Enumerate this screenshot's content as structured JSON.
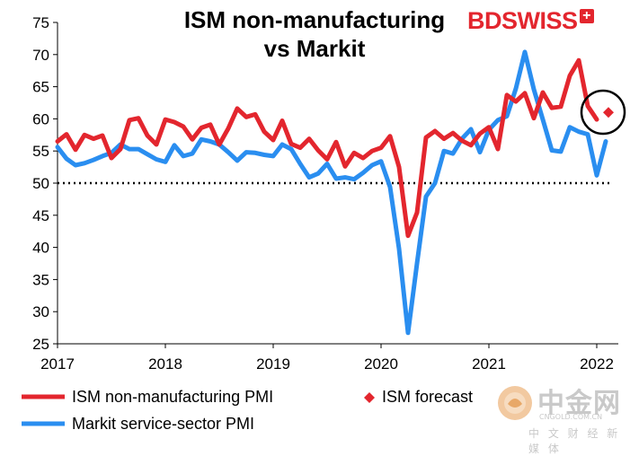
{
  "chart_data": {
    "type": "line",
    "title_line1": "ISM non-manufacturing",
    "title_line2": "vs Markit",
    "brand": {
      "bd": "BD",
      "swiss": "SWISS",
      "plus": "+"
    },
    "ylim": [
      25,
      75
    ],
    "yticks": [
      "25",
      "30",
      "35",
      "40",
      "45",
      "50",
      "55",
      "60",
      "65",
      "70",
      "75"
    ],
    "xticks": [
      "2017",
      "2018",
      "2019",
      "2020",
      "2021",
      "2022"
    ],
    "reference_line": {
      "value": 50,
      "style": "dotted",
      "color": "#000000"
    },
    "grid": false,
    "series": [
      {
        "name": "ISM non-manufacturing PMI",
        "color": "#e3262e",
        "values": [
          56.5,
          57.6,
          55.2,
          57.5,
          56.9,
          57.4,
          53.9,
          55.3,
          59.8,
          60.1,
          57.4,
          56.0,
          59.9,
          59.5,
          58.8,
          56.8,
          58.6,
          59.1,
          56.0,
          58.5,
          61.6,
          60.3,
          60.7,
          58.0,
          56.7,
          59.7,
          56.1,
          55.5,
          56.9,
          55.1,
          53.7,
          56.4,
          52.6,
          54.7,
          53.9,
          55.0,
          55.5,
          57.3,
          52.5,
          41.8,
          45.4,
          57.1,
          58.1,
          56.9,
          57.8,
          56.6,
          55.9,
          57.7,
          58.7,
          55.3,
          63.7,
          62.7,
          64.0,
          60.1,
          64.1,
          61.7,
          61.9,
          66.7,
          69.1,
          62.0,
          59.9
        ]
      },
      {
        "name": "Markit service-sector PMI",
        "color": "#2a8ef0",
        "values": [
          55.6,
          53.8,
          52.8,
          53.1,
          53.6,
          54.2,
          54.7,
          56.0,
          55.3,
          55.3,
          54.5,
          53.7,
          53.3,
          55.9,
          54.2,
          54.6,
          56.8,
          56.5,
          56.0,
          54.8,
          53.5,
          54.8,
          54.7,
          54.4,
          54.2,
          56.0,
          55.3,
          53.0,
          50.9,
          51.5,
          53.0,
          50.7,
          50.9,
          50.6,
          51.6,
          52.8,
          53.4,
          49.4,
          39.8,
          26.7,
          37.5,
          47.9,
          50.0,
          55.0,
          54.6,
          56.9,
          58.4,
          54.8,
          58.3,
          59.8,
          60.4,
          64.7,
          70.4,
          64.6,
          59.9,
          55.1,
          54.9,
          58.7,
          58.0,
          57.6,
          51.2,
          56.5
        ]
      },
      {
        "name": "ISM forecast",
        "color": "#e3262e",
        "marker": "diamond",
        "values": [
          61.0
        ]
      }
    ],
    "legend": [
      {
        "label": "ISM non-manufacturing PMI",
        "symbol": "line",
        "color": "#e3262e"
      },
      {
        "label": "ISM forecast",
        "symbol": "diamond",
        "color": "#e3262e"
      },
      {
        "label": "Markit service-sector PMI",
        "symbol": "line",
        "color": "#2a8ef0"
      }
    ],
    "highlight": "circle around latest ISM value and forecast"
  },
  "watermark": {
    "main": "中金网",
    "url": "CNGOLD.COM.CN",
    "sub": "中 文 财 经 新 媒 体"
  }
}
